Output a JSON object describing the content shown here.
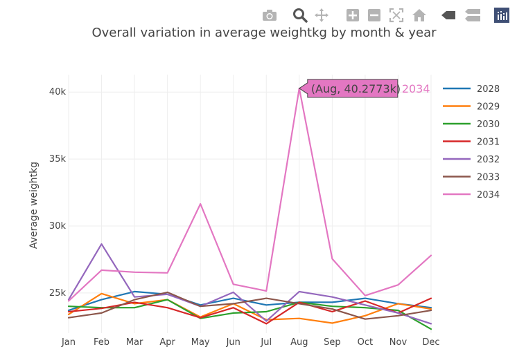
{
  "modebar": {
    "buttons": [
      {
        "name": "camera-icon",
        "title": "Download plot as a png"
      },
      {
        "name": "zoom-icon",
        "title": "Zoom"
      },
      {
        "name": "pan-icon",
        "title": "Pan"
      },
      {
        "name": "zoom-in-icon",
        "title": "Zoom in"
      },
      {
        "name": "zoom-out-icon",
        "title": "Zoom out"
      },
      {
        "name": "autoscale-icon",
        "title": "Autoscale"
      },
      {
        "name": "home-icon",
        "title": "Reset axes"
      },
      {
        "name": "spike-lines-icon",
        "title": "Toggle Spike Lines"
      },
      {
        "name": "compare-data-icon",
        "title": "Compare data on hover"
      },
      {
        "name": "plotly-logo-icon",
        "title": "Produced with Plotly"
      }
    ]
  },
  "chart_data": {
    "type": "line",
    "title": "Overall variation in average weightkg by month & year",
    "xlabel": "",
    "ylabel": "Average weightkg",
    "categories": [
      "Jan",
      "Feb",
      "Mar",
      "Apr",
      "May",
      "Jun",
      "Jul",
      "Aug",
      "Sep",
      "Oct",
      "Nov",
      "Dec"
    ],
    "ylim": [
      22000,
      41300
    ],
    "yticks": [
      25000,
      30000,
      35000,
      40000
    ],
    "ytick_labels": [
      "25k",
      "30k",
      "35k",
      "40k"
    ],
    "grid": true,
    "legend_position": "right",
    "series": [
      {
        "name": "2028",
        "color": "#1f77b4",
        "values": [
          23700,
          24500,
          25100,
          24900,
          24100,
          24600,
          24100,
          24300,
          24300,
          24600,
          24200,
          23900
        ]
      },
      {
        "name": "2029",
        "color": "#ff7f0e",
        "values": [
          23400,
          24950,
          24200,
          24500,
          23200,
          24200,
          23000,
          23100,
          22750,
          23300,
          24200,
          23800
        ]
      },
      {
        "name": "2030",
        "color": "#2ca02c",
        "values": [
          24000,
          23900,
          23900,
          24500,
          23100,
          23500,
          23600,
          24300,
          24000,
          23900,
          23700,
          22300
        ]
      },
      {
        "name": "2031",
        "color": "#d62728",
        "values": [
          23600,
          23850,
          24300,
          23900,
          23150,
          23900,
          22700,
          24300,
          23600,
          24400,
          23500,
          24600
        ]
      },
      {
        "name": "2032",
        "color": "#9467bd",
        "values": [
          24500,
          28650,
          24700,
          24900,
          24000,
          25050,
          22900,
          25100,
          24700,
          24100,
          23500,
          22700
        ]
      },
      {
        "name": "2033",
        "color": "#8c564b",
        "values": [
          23150,
          23500,
          24500,
          25050,
          24000,
          24200,
          24600,
          24200,
          23800,
          23050,
          23300,
          23700
        ]
      },
      {
        "name": "2034",
        "color": "#e377c2",
        "values": [
          24400,
          26700,
          26550,
          26500,
          31650,
          25650,
          25150,
          40277.3,
          27550,
          24800,
          25600,
          27800
        ]
      }
    ],
    "hover": {
      "category": "Aug",
      "series": "2034",
      "value_label": "(Aug, 40.2773k)",
      "series_label": "2034"
    }
  }
}
